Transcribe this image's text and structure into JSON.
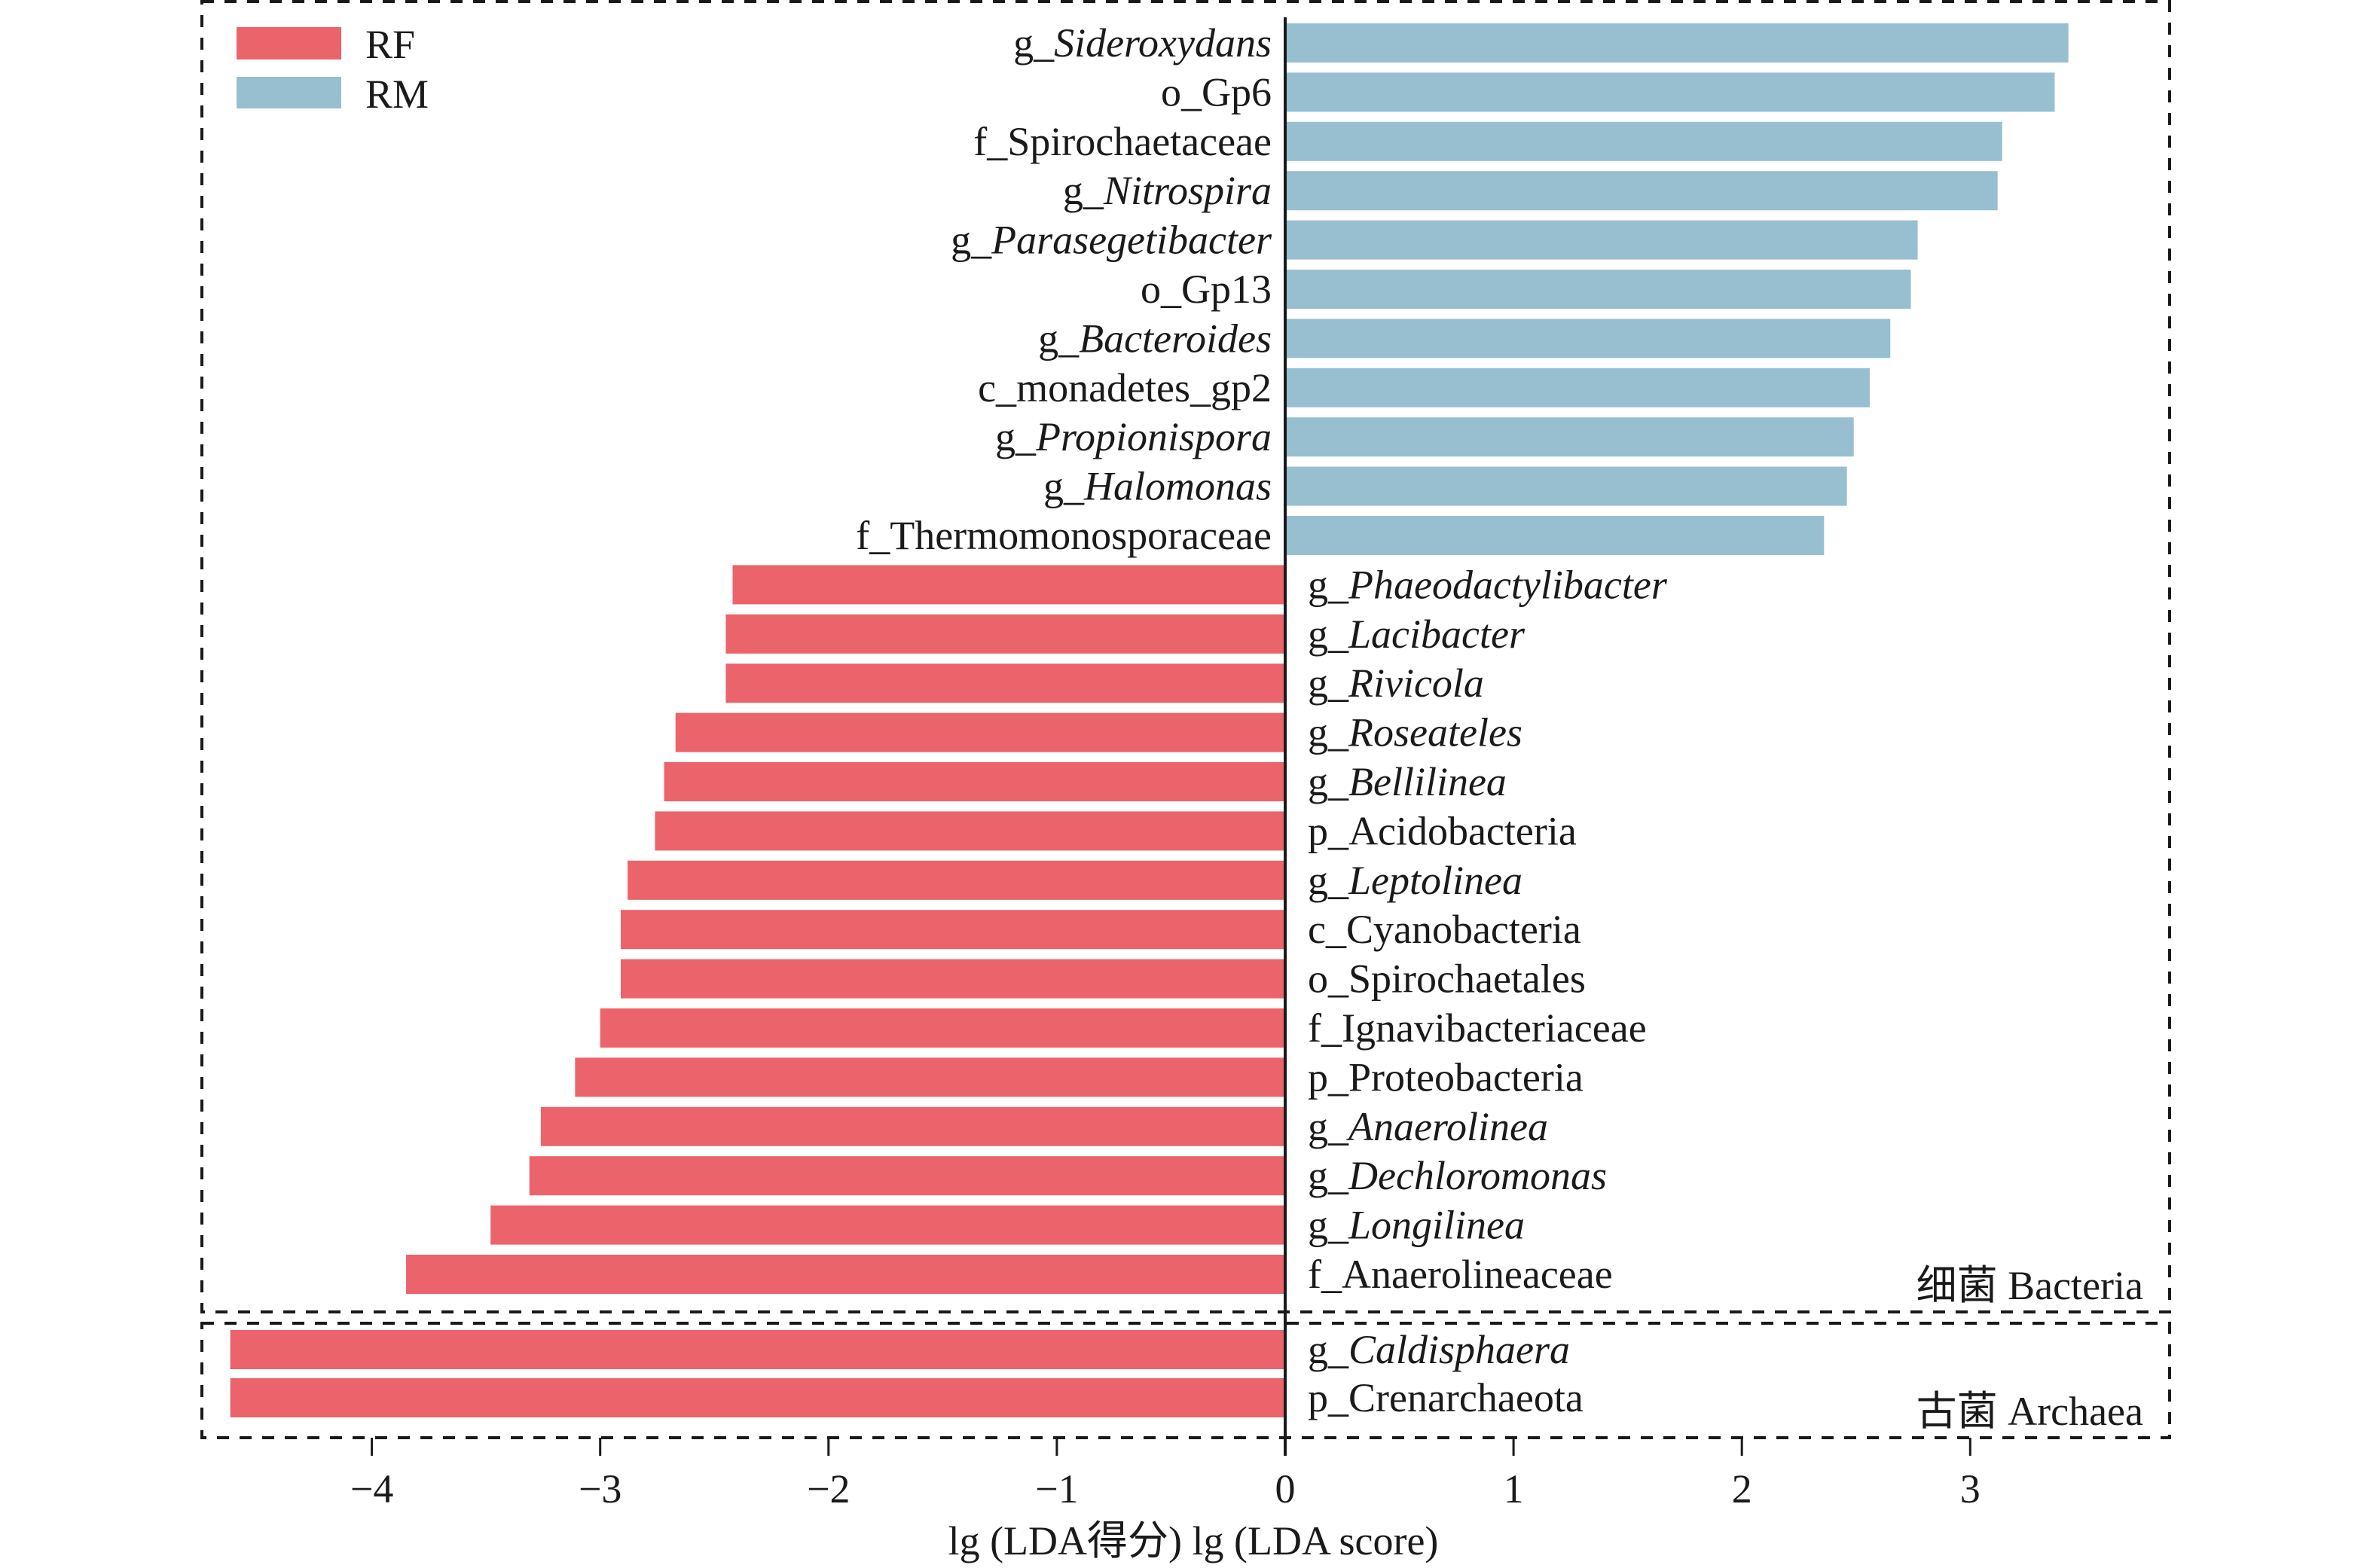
{
  "chart_data": {
    "type": "bar",
    "orientation": "horizontal",
    "title": "",
    "xlabel": "lg (LDA得分)   lg (LDA score)",
    "ylabel": "",
    "xlim": [
      -4.7,
      3.85
    ],
    "x_ticks": [
      -4,
      -3,
      -2,
      -1,
      0,
      1,
      2,
      3
    ],
    "x_tick_labels": [
      "−4",
      "−3",
      "−2",
      "−1",
      "0",
      "1",
      "2",
      "3"
    ],
    "grid": false,
    "legend": {
      "position": "top-left",
      "entries": [
        {
          "name": "RF",
          "color": "#EB636B"
        },
        {
          "name": "RM",
          "color": "#97BFD0"
        }
      ]
    },
    "series": [
      {
        "name": "RF",
        "color": "#EB636B"
      },
      {
        "name": "RM",
        "color": "#97BFD0"
      }
    ],
    "groups": [
      {
        "name": "细菌 Bacteria",
        "bars": [
          {
            "prefix": "g_",
            "taxon": "Sideroxydans",
            "italic": true,
            "value": 3.43,
            "group": "RM"
          },
          {
            "prefix": "o_",
            "taxon": "Gp6",
            "italic": false,
            "value": 3.37,
            "group": "RM"
          },
          {
            "prefix": "f_",
            "taxon": "Spirochaetaceae",
            "italic": false,
            "value": 3.14,
            "group": "RM"
          },
          {
            "prefix": "g_",
            "taxon": "Nitrospira",
            "italic": true,
            "value": 3.12,
            "group": "RM"
          },
          {
            "prefix": "g_",
            "taxon": "Parasegetibacter",
            "italic": true,
            "value": 2.77,
            "group": "RM"
          },
          {
            "prefix": "o_",
            "taxon": "Gp13",
            "italic": false,
            "value": 2.74,
            "group": "RM"
          },
          {
            "prefix": "g_",
            "taxon": "Bacteroides",
            "italic": true,
            "value": 2.65,
            "group": "RM"
          },
          {
            "prefix": "c_",
            "taxon": "monadetes_gp2",
            "italic": false,
            "value": 2.56,
            "group": "RM"
          },
          {
            "prefix": "g_",
            "taxon": "Propionispora",
            "italic": true,
            "value": 2.49,
            "group": "RM"
          },
          {
            "prefix": "g_",
            "taxon": "Halomonas",
            "italic": true,
            "value": 2.46,
            "group": "RM"
          },
          {
            "prefix": "f_",
            "taxon": "Thermomonosporaceae",
            "italic": false,
            "value": 2.36,
            "group": "RM"
          },
          {
            "prefix": "g_",
            "taxon": "Phaeodactylibacter",
            "italic": true,
            "value": -2.42,
            "group": "RF"
          },
          {
            "prefix": "g_",
            "taxon": "Lacibacter",
            "italic": true,
            "value": -2.45,
            "group": "RF"
          },
          {
            "prefix": "g_",
            "taxon": "Rivicola",
            "italic": true,
            "value": -2.45,
            "group": "RF"
          },
          {
            "prefix": "g_",
            "taxon": "Roseateles",
            "italic": true,
            "value": -2.67,
            "group": "RF"
          },
          {
            "prefix": "g_",
            "taxon": "Bellilinea",
            "italic": true,
            "value": -2.72,
            "group": "RF"
          },
          {
            "prefix": "p_",
            "taxon": "Acidobacteria",
            "italic": false,
            "value": -2.76,
            "group": "RF"
          },
          {
            "prefix": "g_",
            "taxon": "Leptolinea",
            "italic": true,
            "value": -2.88,
            "group": "RF"
          },
          {
            "prefix": "c_",
            "taxon": "Cyanobacteria",
            "italic": false,
            "value": -2.91,
            "group": "RF"
          },
          {
            "prefix": "o_",
            "taxon": "Spirochaetales",
            "italic": false,
            "value": -2.91,
            "group": "RF"
          },
          {
            "prefix": "f_",
            "taxon": "Ignavibacteriaceae",
            "italic": false,
            "value": -3.0,
            "group": "RF"
          },
          {
            "prefix": "p_",
            "taxon": "Proteobacteria",
            "italic": false,
            "value": -3.11,
            "group": "RF"
          },
          {
            "prefix": "g_",
            "taxon": "Anaerolinea",
            "italic": true,
            "value": -3.26,
            "group": "RF"
          },
          {
            "prefix": "g_",
            "taxon": "Dechloromonas",
            "italic": true,
            "value": -3.31,
            "group": "RF"
          },
          {
            "prefix": "g_",
            "taxon": "Longilinea",
            "italic": true,
            "value": -3.48,
            "group": "RF"
          },
          {
            "prefix": "f_",
            "taxon": "Anaerolineaceae",
            "italic": false,
            "value": -3.85,
            "group": "RF"
          }
        ]
      },
      {
        "name": "古菌 Archaea",
        "bars": [
          {
            "prefix": "g_",
            "taxon": "Caldisphaera",
            "italic": true,
            "value": -4.62,
            "group": "RF"
          },
          {
            "prefix": "p_",
            "taxon": "Crenarchaeota",
            "italic": false,
            "value": -4.62,
            "group": "RF"
          }
        ]
      }
    ]
  }
}
